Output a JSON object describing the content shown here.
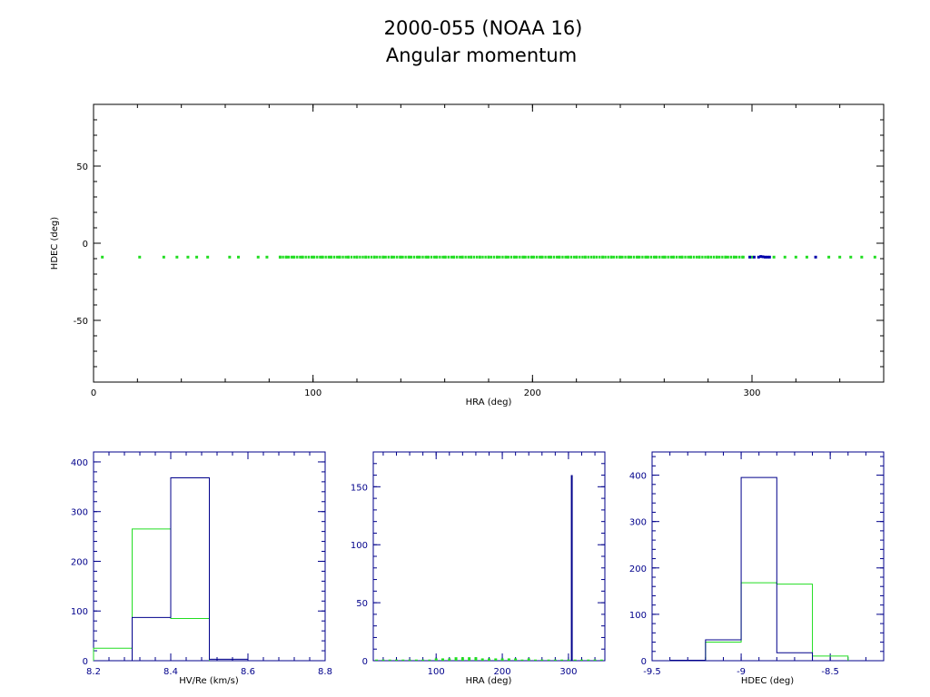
{
  "title": "2000-055 (NOAA 16)",
  "subtitle": "Angular momentum",
  "colors": {
    "axis_main": "#000000",
    "axis_hist": "#00008b",
    "series_green": "#22dd22",
    "series_blue": "#0000aa"
  },
  "chart_data": [
    {
      "type": "scatter",
      "xlabel": "HRA (deg)",
      "ylabel": "HDEC (deg)",
      "xlim": [
        0,
        360
      ],
      "ylim": [
        -90,
        90
      ],
      "xticks": [
        "0",
        "100",
        "200",
        "300"
      ],
      "xtick_values": [
        0,
        100,
        200,
        300
      ],
      "yticks": [
        "50",
        "0",
        "-50"
      ],
      "ytick_values": [
        50,
        0,
        -50
      ],
      "series": [
        {
          "color": "#22dd22",
          "x": [
            4,
            21,
            32,
            38,
            43,
            47,
            52,
            62,
            66,
            75,
            79,
            85,
            88,
            91,
            95,
            100,
            104,
            108,
            112,
            116,
            120,
            124,
            128,
            132,
            136,
            140,
            144,
            148,
            152,
            156,
            160,
            164,
            168,
            172,
            176,
            180,
            184,
            188,
            192,
            196,
            200,
            204,
            208,
            212,
            216,
            220,
            224,
            228,
            232,
            236,
            240,
            244,
            248,
            252,
            256,
            260,
            264,
            268,
            272,
            276,
            280,
            284,
            288,
            292,
            296,
            300,
            310,
            315,
            320,
            325,
            335,
            340,
            345,
            350,
            356
          ],
          "y": [
            -9,
            -9,
            -9,
            -9,
            -9,
            -9,
            -9,
            -9,
            -9,
            -9,
            -9,
            -9,
            -9,
            -9,
            -9,
            -9,
            -9,
            -9,
            -9,
            -9,
            -9,
            -9,
            -9,
            -9,
            -9,
            -9,
            -9,
            -9,
            -9,
            -9,
            -9,
            -9,
            -9,
            -9,
            -9,
            -9,
            -9,
            -9,
            -9,
            -9,
            -9,
            -9,
            -9,
            -9,
            -9,
            -9,
            -9,
            -9,
            -9,
            -9,
            -9,
            -9,
            -9,
            -9,
            -9,
            -9,
            -9,
            -9,
            -9,
            -9,
            -9,
            -9,
            -9,
            -9,
            -9,
            -9,
            -9,
            -9,
            -9,
            -9,
            -9,
            -9,
            -9,
            -9,
            -9
          ]
        },
        {
          "color": "#0000aa",
          "x": [
            299,
            301,
            303,
            304,
            305,
            306,
            307,
            308,
            329
          ],
          "y": [
            -9,
            -9,
            -9,
            -8.6,
            -8.8,
            -9,
            -9,
            -9,
            -9
          ]
        }
      ]
    },
    {
      "type": "bar",
      "xlabel": "HV/Re (km/s)",
      "ylabel": "",
      "xlim": [
        8.2,
        8.8
      ],
      "ylim": [
        0,
        420
      ],
      "xticks": [
        "8.2",
        "8.4",
        "8.6",
        "8.8"
      ],
      "xtick_values": [
        8.2,
        8.4,
        8.6,
        8.8
      ],
      "yticks": [
        "0",
        "100",
        "200",
        "300",
        "400"
      ],
      "ytick_values": [
        0,
        100,
        200,
        300,
        400
      ],
      "series": [
        {
          "color": "#22dd22",
          "bin_edges": [
            8.2,
            8.3,
            8.4,
            8.5
          ],
          "values": [
            25,
            265,
            85
          ]
        },
        {
          "color": "#00008b",
          "bin_edges": [
            8.3,
            8.4,
            8.5,
            8.6
          ],
          "values": [
            87,
            368,
            3
          ]
        }
      ]
    },
    {
      "type": "bar",
      "xlabel": "HRA (deg)",
      "ylabel": "",
      "xlim": [
        5,
        355
      ],
      "ylim": [
        0,
        180
      ],
      "xticks": [
        "100",
        "200",
        "300"
      ],
      "xtick_values": [
        100,
        200,
        300
      ],
      "yticks": [
        "0",
        "50",
        "100",
        "150"
      ],
      "ytick_values": [
        0,
        50,
        100,
        150
      ],
      "series": [
        {
          "color": "#22dd22",
          "note": "",
          "x": [
            10,
            20,
            30,
            40,
            50,
            60,
            70,
            80,
            90,
            100,
            110,
            120,
            130,
            140,
            150,
            160,
            170,
            180,
            190,
            200,
            210,
            220,
            230,
            240,
            250,
            260,
            270,
            280,
            290,
            300,
            310,
            320,
            330,
            340,
            350
          ],
          "values": [
            1,
            1,
            1,
            1,
            1,
            1,
            1,
            1,
            1,
            2,
            2,
            2,
            3,
            3,
            3,
            3,
            2,
            2,
            2,
            2,
            2,
            2,
            1,
            2,
            1,
            1,
            1,
            1,
            1,
            1,
            1,
            1,
            1,
            1,
            1
          ]
        },
        {
          "color": "#00008b",
          "x": [
            305
          ],
          "values": [
            160
          ]
        }
      ]
    },
    {
      "type": "bar",
      "xlabel": "HDEC (deg)",
      "ylabel": "",
      "xlim": [
        -9.5,
        -8.2
      ],
      "ylim": [
        0,
        450
      ],
      "xticks": [
        "-9.5",
        "-9",
        "-8.5"
      ],
      "xtick_values": [
        -9.5,
        -9.0,
        -8.5
      ],
      "yticks": [
        "0",
        "100",
        "200",
        "300",
        "400"
      ],
      "ytick_values": [
        0,
        100,
        200,
        300,
        400
      ],
      "series": [
        {
          "color": "#22dd22",
          "bin_edges": [
            -9.4,
            -9.2,
            -9.0,
            -8.8,
            -8.6,
            -8.4
          ],
          "values": [
            1,
            40,
            168,
            165,
            10
          ]
        },
        {
          "color": "#00008b",
          "bin_edges": [
            -9.4,
            -9.2,
            -9.0,
            -8.8,
            -8.6
          ],
          "values": [
            1,
            45,
            395,
            17
          ]
        }
      ]
    }
  ]
}
